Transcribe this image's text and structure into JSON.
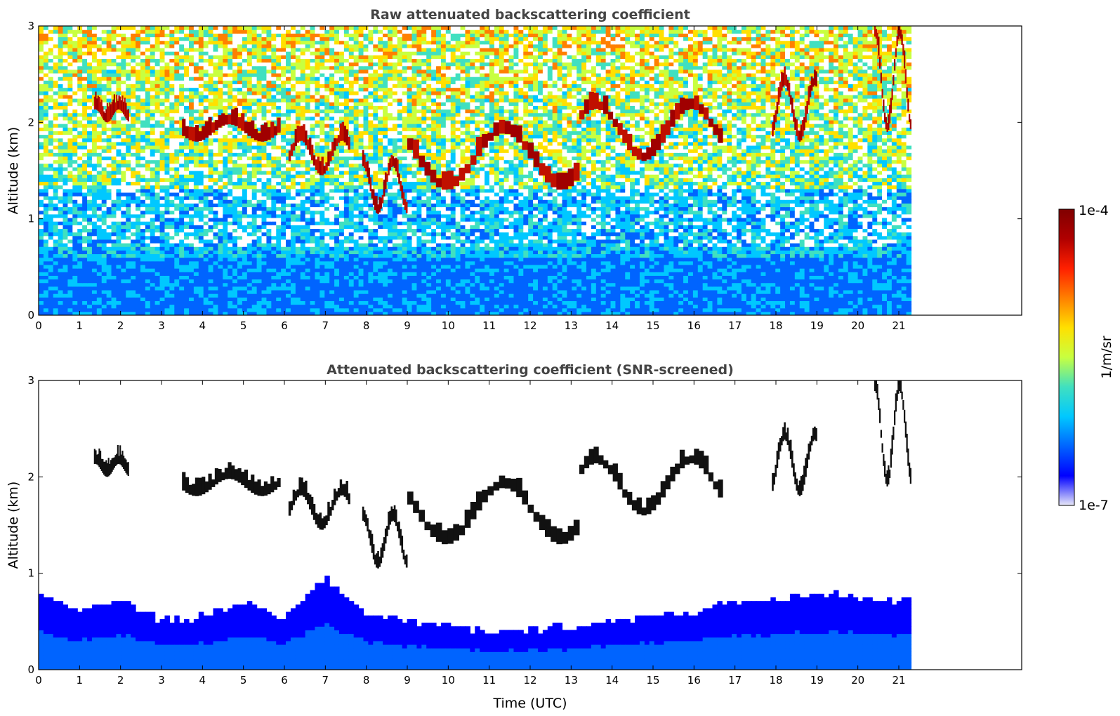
{
  "chart_data": [
    {
      "type": "heatmap",
      "title": "Raw attenuated backscattering coefficient",
      "xlabel": "",
      "ylabel": "Altitude (km)",
      "xlim": [
        0,
        24
      ],
      "ylim": [
        0,
        3
      ],
      "x_ticks": [
        0,
        1,
        2,
        3,
        4,
        5,
        6,
        7,
        8,
        9,
        10,
        11,
        12,
        13,
        14,
        15,
        16,
        17,
        18,
        19,
        20,
        21
      ],
      "y_ticks": [
        0,
        1,
        2,
        3
      ],
      "data_end_time": 21.3,
      "screened": false,
      "cloud_layers": [
        {
          "t": [
            1.35,
            2.2
          ],
          "alt": [
            2.0,
            2.15
          ]
        },
        {
          "t": [
            3.5,
            5.9
          ],
          "alt": [
            1.8,
            2.0
          ]
        },
        {
          "t": [
            6.1,
            7.6
          ],
          "alt": [
            1.45,
            1.85
          ]
        },
        {
          "t": [
            7.9,
            9.0
          ],
          "alt": [
            1.05,
            1.6
          ]
        },
        {
          "t": [
            9.0,
            13.2
          ],
          "alt": [
            1.3,
            1.95
          ]
        },
        {
          "t": [
            13.2,
            16.7
          ],
          "alt": [
            1.6,
            2.2
          ]
        },
        {
          "t": [
            17.9,
            19.0
          ],
          "alt": [
            1.8,
            2.45
          ]
        },
        {
          "t": [
            20.4,
            21.3
          ],
          "alt": [
            1.9,
            3.0
          ]
        }
      ]
    },
    {
      "type": "heatmap",
      "title": "Attenuated backscattering coefficient (SNR-screened)",
      "xlabel": "Time (UTC)",
      "ylabel": "Altitude (km)",
      "xlim": [
        0,
        24
      ],
      "ylim": [
        0,
        3
      ],
      "x_ticks": [
        0,
        1,
        2,
        3,
        4,
        5,
        6,
        7,
        8,
        9,
        10,
        11,
        12,
        13,
        14,
        15,
        16,
        17,
        18,
        19,
        20,
        21
      ],
      "y_ticks": [
        0,
        1,
        2,
        3
      ],
      "data_end_time": 21.3,
      "screened": true,
      "boundary_layer_top_km": [
        0.8,
        0.6,
        0.75,
        0.5,
        0.55,
        0.7,
        0.55,
        0.95,
        0.6,
        0.5,
        0.45,
        0.4,
        0.42,
        0.45,
        0.5,
        0.55,
        0.6,
        0.7,
        0.75,
        0.8,
        0.75,
        0.7
      ]
    }
  ],
  "colorbar": {
    "label": "1/m/sr",
    "max_label": "1e-4",
    "min_label": "1e-7",
    "colors": [
      "#e8e8f8",
      "#0000ff",
      "#0064ff",
      "#00c8ff",
      "#40e0c0",
      "#c8ff40",
      "#ffe000",
      "#ff8000",
      "#ff2000",
      "#b00000",
      "#800000"
    ]
  }
}
